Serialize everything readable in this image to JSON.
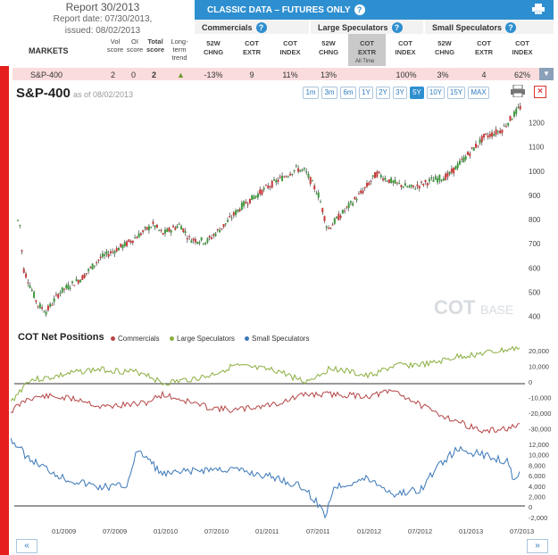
{
  "report": {
    "title": "Report 30/2013",
    "date": "Report date: 07/30/2013,",
    "issued": "issued: 08/02/2013"
  },
  "classic_title": "CLASSIC DATA – FUTURES ONLY",
  "groups": [
    "Commercials",
    "Large Speculators",
    "Small Speculators"
  ],
  "col_headers": {
    "chng": "52W CHNG",
    "extr": "COT EXTR",
    "index": "COT INDEX",
    "alltime": "All Time"
  },
  "markets_label": "MARKETS",
  "left_headers": {
    "vol": "Vol score",
    "oi": "OI score",
    "total": "Total score",
    "trend": "Long-term trend"
  },
  "row": {
    "market": "S&P-400",
    "vol": "2",
    "oi": "0",
    "total": "2",
    "comm_chng": "-13%",
    "comm_extr": "9",
    "comm_index": "11%",
    "large_chng": "13%",
    "large_extr": "",
    "large_index": "100%",
    "small_chng": "3%",
    "small_extr": "4",
    "small_index": "62%"
  },
  "chart": {
    "title": "S&P-400",
    "asof": "as of 08/02/2013",
    "ranges": [
      "1m",
      "3m",
      "6m",
      "1Y",
      "2Y",
      "3Y",
      "5Y",
      "10Y",
      "15Y",
      "MAX"
    ],
    "active_range": "5Y",
    "price_ticks": [
      "1200",
      "1100",
      "1000",
      "900",
      "800",
      "700",
      "600",
      "500",
      "400"
    ],
    "watermark_a": "COT",
    "watermark_b": "BASE",
    ".com": ""
  },
  "cot": {
    "title": "COT Net Positions",
    "legend": [
      "Commercials",
      "Large Speculators",
      "Small Speculators"
    ],
    "colors": {
      "commercials": "#b54545",
      "large": "#8aae3f",
      "small": "#3a77b8"
    },
    "ticks1": [
      "20,000",
      "10,000",
      "0",
      "-10,000",
      "-20,000",
      "-30,000"
    ],
    "ticks2": [
      "12,000",
      "10,000",
      "8,000",
      "6,000",
      "4,000",
      "2,000",
      "0",
      "-2,000"
    ],
    "dates": [
      "01/2009",
      "07/2009",
      "01/2010",
      "07/2010",
      "01/2011",
      "07/2011",
      "01/2012",
      "07/2012",
      "01/2013",
      "07/2013"
    ]
  },
  "nav": {
    "prev": "«",
    "next": "»"
  }
}
